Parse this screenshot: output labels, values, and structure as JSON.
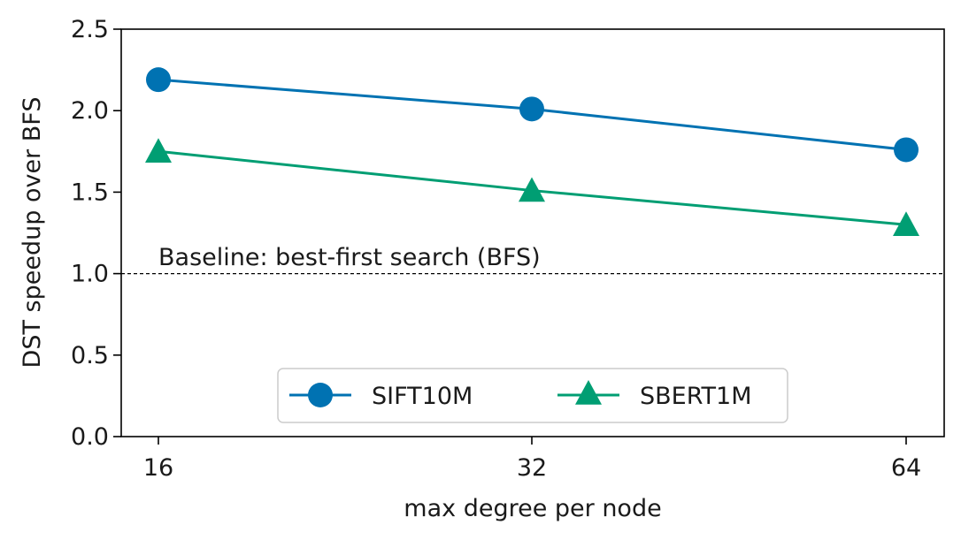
{
  "chart_data": {
    "type": "line",
    "title": "",
    "xlabel": "max degree per node",
    "ylabel": "DST speedup over BFS",
    "categories": [
      "16",
      "32",
      "64"
    ],
    "ylim": [
      0.0,
      2.5
    ],
    "yticks": [
      "0.0",
      "0.5",
      "1.0",
      "1.5",
      "2.0",
      "2.5"
    ],
    "grid": false,
    "legend_position": "lower-center",
    "baseline": {
      "value": 1.0,
      "label": "Baseline: best-first search (BFS)",
      "style": "dashed",
      "color": "#000000"
    },
    "series": [
      {
        "name": "SIFT10M",
        "values": [
          2.19,
          2.01,
          1.76
        ],
        "color": "#0072b2",
        "marker": "circle"
      },
      {
        "name": "SBERT1M",
        "values": [
          1.75,
          1.51,
          1.3
        ],
        "color": "#009e73",
        "marker": "triangle"
      }
    ]
  }
}
